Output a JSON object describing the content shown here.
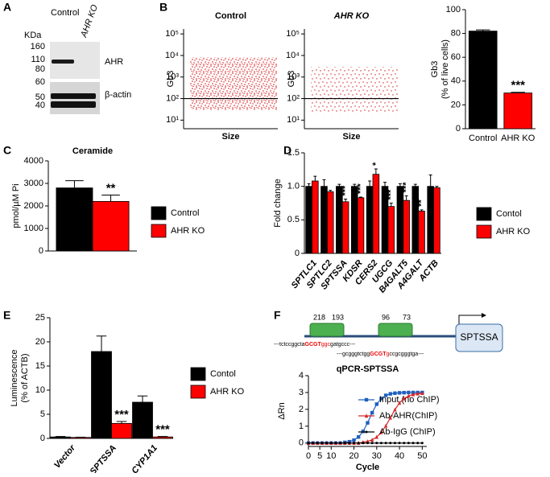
{
  "panel_labels": [
    "A",
    "B",
    "C",
    "D",
    "E",
    "F"
  ],
  "blot": {
    "unit": "KDa",
    "lanes": [
      "Control",
      "AHR KO"
    ],
    "markers": [
      160,
      110,
      80,
      60,
      50,
      40
    ],
    "proteins": [
      "AHR",
      "β-actin"
    ]
  },
  "diagram": {
    "regions": [
      [
        218,
        193
      ],
      [
        96,
        73
      ]
    ],
    "gene": "SPTSSA",
    "sequences": [
      [
        "---tctccggcta",
        "GCGT",
        "ggc",
        "gatgccc---"
      ],
      [
        "---gcgggtctgg",
        "GCGT",
        "g",
        "ccgcgggtga---"
      ]
    ]
  },
  "chart_data": [
    {
      "type": "scatter",
      "title": "Control",
      "xlabel": "Size",
      "ylabel": "Gb3",
      "log_y": true,
      "ylim": [
        4,
        170000
      ],
      "yticks": [
        {
          "value": 10,
          "label": "10¹"
        },
        {
          "value": 100,
          "label": "10²"
        },
        {
          "value": 1000,
          "label": "10³"
        },
        {
          "value": 10000,
          "label": "10⁴"
        },
        {
          "value": 100000,
          "label": "10⁵"
        }
      ],
      "gate": 100,
      "color": "#d7191c"
    },
    {
      "type": "scatter",
      "title": "AHR KO",
      "xlabel": "Size",
      "ylabel": "Gb3",
      "log_y": true,
      "ylim": [
        4,
        170000
      ],
      "yticks": [
        {
          "value": 10,
          "label": "10¹"
        },
        {
          "value": 100,
          "label": "10²"
        },
        {
          "value": 1000,
          "label": "10³"
        },
        {
          "value": 10000,
          "label": "10⁴"
        },
        {
          "value": 100000,
          "label": "10⁵"
        }
      ],
      "gate": 100,
      "color": "#d7191c"
    },
    {
      "type": "bar",
      "categories": [
        "Control",
        "AHR KO"
      ],
      "ylabel": [
        "Gb3",
        "(% of live cells)"
      ],
      "ylim": [
        0,
        100
      ],
      "yticks": [
        0,
        20,
        40,
        60,
        80,
        100
      ],
      "series": [
        {
          "colors": [
            "#000000",
            "#ff0000"
          ],
          "values": [
            82,
            30
          ],
          "errors": [
            1,
            0.6
          ],
          "significance": [
            null,
            "***"
          ]
        }
      ]
    },
    {
      "type": "bar",
      "title": "Ceramide",
      "categories": [
        null
      ],
      "ylabel": [
        "pmol/µM Pi"
      ],
      "ylim": [
        0,
        4000
      ],
      "yticks": [
        0,
        1000,
        2000,
        3000,
        4000
      ],
      "series": [
        {
          "name": "Control",
          "color": "#000000",
          "values": [
            2800
          ],
          "errors": [
            320
          ]
        },
        {
          "name": "AHR KO",
          "color": "#ff0000",
          "values": [
            2200
          ],
          "errors": [
            280
          ],
          "significance": [
            "**"
          ]
        }
      ]
    },
    {
      "type": "bar",
      "categories": [
        "SPTLC1",
        "SPTLC2",
        "SPTSSA",
        "KDSR",
        "CERS2",
        "UGCG",
        "B4GALT5",
        "A4GALT",
        "ACTB"
      ],
      "rotate_categories": true,
      "ylabel": [
        "Fold change"
      ],
      "ylim": [
        0,
        1.5
      ],
      "yticks": [
        0,
        0.5,
        {
          "value": 1,
          "label": "1.0"
        },
        1.5
      ],
      "series": [
        {
          "name": "Contol",
          "color": "#000000",
          "values": [
            1,
            1,
            1,
            1,
            1,
            1,
            1,
            1,
            1
          ],
          "errors": [
            0.04,
            0.1,
            0.03,
            0.03,
            0.08,
            0.06,
            0.04,
            0.03,
            0.17
          ]
        },
        {
          "name": "AHR KO",
          "color": "#ff0000",
          "values": [
            1.08,
            0.92,
            0.77,
            0.83,
            1.18,
            0.7,
            0.79,
            0.63,
            0.98
          ],
          "errors": [
            0.07,
            0.02,
            0.04,
            0.01,
            0.08,
            0.05,
            0.07,
            0.02,
            0.02
          ],
          "significance": [
            null,
            null,
            "***",
            "***",
            "*",
            "***",
            "***",
            "**",
            null
          ]
        }
      ]
    },
    {
      "type": "bar",
      "categories": [
        "Vector",
        "SPTSSA",
        "CYP1A1"
      ],
      "rotate_categories": true,
      "ylabel": [
        "Luminescence",
        "(% of ACTB)"
      ],
      "ylim": [
        0,
        25
      ],
      "yticks": [
        0,
        5,
        10,
        15,
        20,
        25
      ],
      "series": [
        {
          "name": "Contol",
          "color": "#000000",
          "values": [
            0.3,
            18,
            7.5
          ],
          "errors": [
            0.1,
            3.2,
            1.3
          ]
        },
        {
          "name": "AHR KO",
          "color": "#ff0000",
          "values": [
            0.2,
            3.1,
            0.3
          ],
          "errors": [
            0.05,
            0.4,
            0.1
          ],
          "significance": [
            null,
            "***",
            "***"
          ]
        }
      ]
    },
    {
      "type": "line",
      "title": "qPCR-SPTSSA",
      "xlabel": "Cycle",
      "ylabel": "ΔRn",
      "xlim": [
        0,
        52
      ],
      "ylim": [
        -0.2,
        4
      ],
      "xticks": [
        0,
        5,
        10,
        20,
        30,
        40,
        50
      ],
      "yticks": [
        0,
        1,
        2,
        3,
        4
      ],
      "x": [
        0,
        2,
        4,
        6,
        8,
        10,
        12,
        14,
        16,
        18,
        20,
        22,
        24,
        26,
        28,
        30,
        32,
        34,
        36,
        38,
        40,
        42,
        44,
        46,
        48,
        50
      ],
      "series": [
        {
          "name": "Input (no ChIP)",
          "color": "#1f5fbf",
          "marker": "square",
          "values": [
            0,
            0,
            0,
            0,
            0,
            0,
            0,
            0,
            0.04,
            0.08,
            0.17,
            0.36,
            0.69,
            1.2,
            1.8,
            2.31,
            2.64,
            2.83,
            2.92,
            2.96,
            2.98,
            2.99,
            3,
            3,
            3,
            3
          ]
        },
        {
          "name": "Ab-AHR(ChIP)",
          "color": "#d62728",
          "marker": "triangle",
          "values": [
            0,
            0,
            0,
            0,
            0,
            0,
            0,
            0,
            0,
            0,
            0,
            0,
            0.05,
            0.1,
            0.19,
            0.36,
            0.63,
            1.02,
            1.5,
            1.98,
            2.38,
            2.64,
            2.8,
            2.88,
            2.93,
            2.96
          ]
        },
        {
          "name": "Ab-IgG (ChIP)",
          "color": "#000000",
          "marker": "dot",
          "values": [
            0,
            0,
            0,
            0,
            0,
            0,
            0,
            0,
            0,
            0,
            0,
            0,
            0,
            0,
            0,
            0,
            0,
            0,
            0,
            0,
            0,
            0,
            0,
            0,
            0,
            0
          ]
        }
      ]
    }
  ]
}
